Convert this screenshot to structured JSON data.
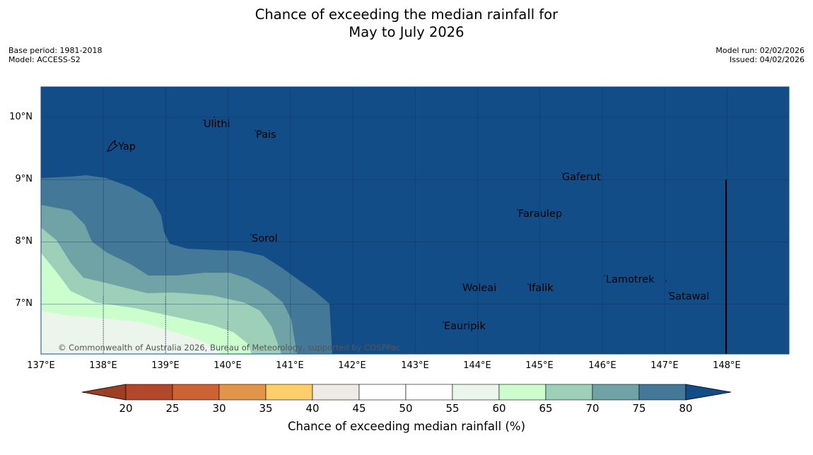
{
  "title": {
    "line1": "Chance of exceeding the median rainfall for",
    "line2": "May to July 2026"
  },
  "meta_left": {
    "base_period": "Base period: 1981-2018",
    "model": "Model: ACCESS-S2"
  },
  "meta_right": {
    "model_run": "Model run: 02/02/2026",
    "issued": "Issued: 04/02/2026"
  },
  "map": {
    "latitude_labels": [
      "10°N",
      "9°N",
      "8°N",
      "7°N"
    ],
    "longitude_labels": [
      "137°E",
      "138°E",
      "139°E",
      "140°E",
      "141°E",
      "142°E",
      "143°E",
      "144°E",
      "145°E",
      "146°E",
      "147°E",
      "148°E"
    ],
    "places": [
      {
        "name": "Ulithi"
      },
      {
        "name": "Pais"
      },
      {
        "name": "Yap"
      },
      {
        "name": "Gaferut"
      },
      {
        "name": "Faraulep"
      },
      {
        "name": "Sorol"
      },
      {
        "name": "Lamotrek"
      },
      {
        "name": "Woleai"
      },
      {
        "name": "Ifalik"
      },
      {
        "name": "Satawal"
      },
      {
        "name": "Eauripik"
      }
    ],
    "copyright": "© Commonwealth of Australia 2026, Bureau of Meteorology, supported by COSPPac",
    "colors": {
      "above_80": "#134d88",
      "75_80": "#437898",
      "70_75": "#6fa3a6",
      "65_70": "#9ecfb9",
      "60_65": "#ccfdcc",
      "55_60": "#ebf5eb"
    }
  },
  "colorbar": {
    "ticks": [
      "20",
      "25",
      "30",
      "35",
      "40",
      "45",
      "50",
      "55",
      "60",
      "65",
      "70",
      "75",
      "80"
    ],
    "colors": [
      "#9c3f22",
      "#b1482a",
      "#cd6332",
      "#e29548",
      "#fece6a",
      "#eeebe6",
      "#ffffff",
      "#ffffff",
      "#ebf5eb",
      "#ccfdcc",
      "#9ecfb9",
      "#6fa3a6",
      "#437898",
      "#134d88"
    ],
    "label": "Chance of exceeding median rainfall (%)"
  }
}
